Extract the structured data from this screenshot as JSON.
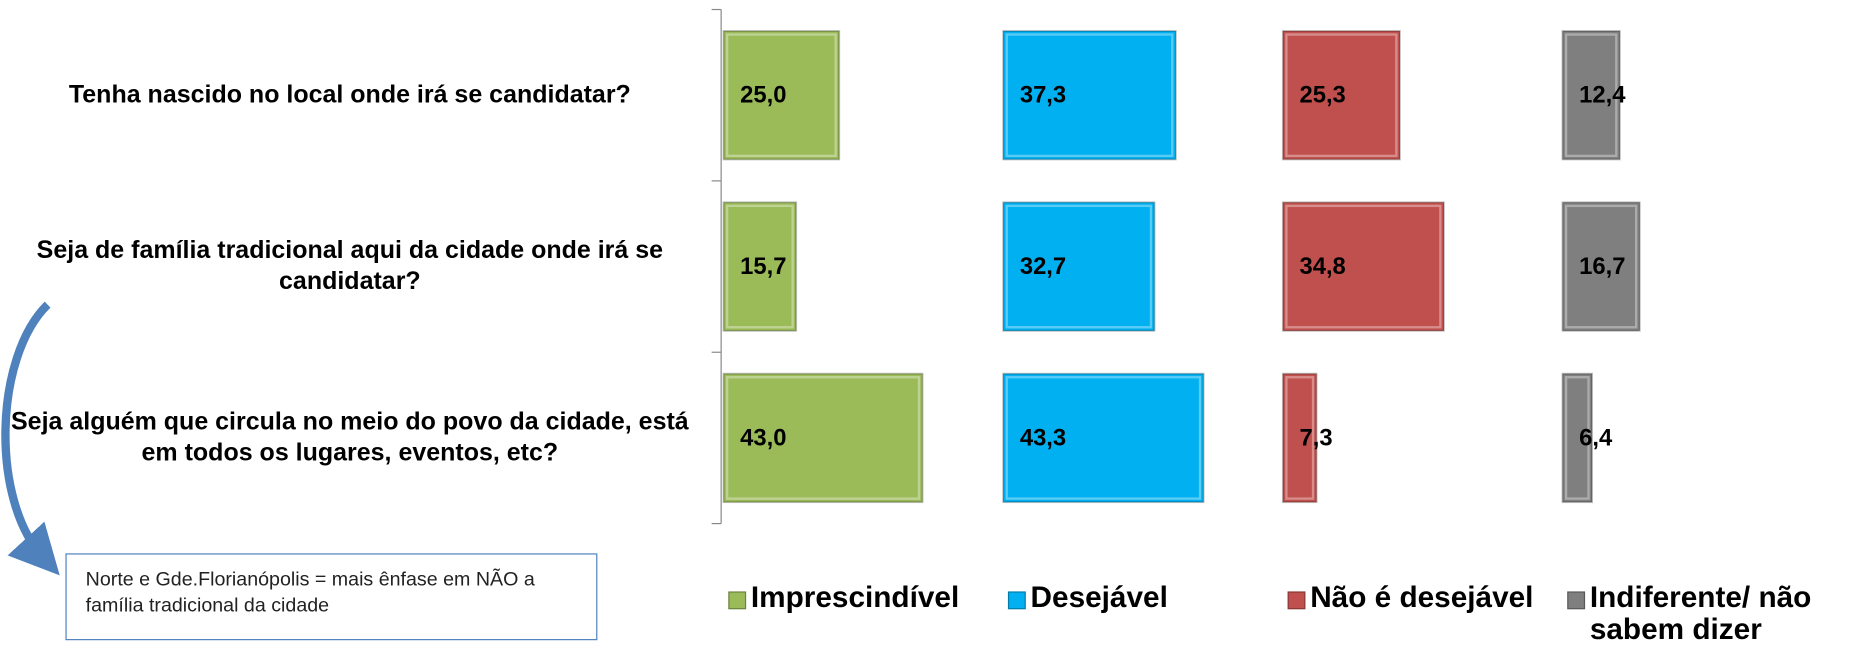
{
  "chart_data": {
    "type": "bar",
    "orientation": "horizontal",
    "categories": [
      "Tenha nascido no local onde irá se candidatar?",
      "Seja de família tradicional aqui da cidade onde irá se candidatar?",
      "Seja alguém que circula no meio do povo da cidade, está em todos os lugares, eventos, etc?"
    ],
    "series": [
      {
        "name": "Imprescindível",
        "color": "#9bbb59",
        "values": [
          25.0,
          15.7,
          43.0
        ],
        "value_labels": [
          "25,0",
          "15,7",
          "43,0"
        ]
      },
      {
        "name": "Desejável",
        "color": "#00b0f0",
        "values": [
          37.3,
          32.7,
          43.3
        ],
        "value_labels": [
          "37,3",
          "32,7",
          "43,3"
        ]
      },
      {
        "name": "Não é desejável",
        "color": "#c0504d",
        "values": [
          25.3,
          34.8,
          7.3
        ],
        "value_labels": [
          "25,3",
          "34,8",
          "7,3"
        ]
      },
      {
        "name": "Indiferente/ não sabem dizer",
        "color": "#7f7f7f",
        "values": [
          12.4,
          16.7,
          6.4
        ],
        "value_labels": [
          "12,4",
          "16,7",
          "6,4"
        ]
      }
    ],
    "legend": "bottom"
  },
  "annotation": "Norte e Gde.Florianópolis = mais ênfase em NÃO a família tradicional da cidade"
}
